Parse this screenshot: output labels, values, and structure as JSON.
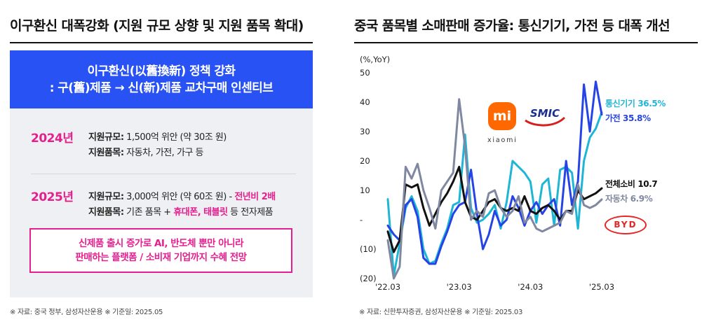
{
  "left": {
    "title": "이구환신 대폭강화 (지원 규모 상향 및 지원 품목 확대)",
    "banner": {
      "line1": "이구환신(以舊換新) 정책 강화",
      "line2": ": 구(舊)제품 → 신(新)제품 교차구매 인센티브"
    },
    "y2024": {
      "year": "2024년",
      "scale_label": "지원규모:",
      "scale_value": " 1,500억 위안 (약 30조 원)",
      "items_label": "지원품목:",
      "items_value": " 자동차, 가전, 가구 등"
    },
    "y2025": {
      "year": "2025년",
      "scale_label": "지원규모:",
      "scale_value": " 3,000억 위안 (약 60조 원) - ",
      "scale_highlight": "전년비 2배",
      "items_label": "지원품목:",
      "items_value1": " 기존 품목 + ",
      "items_highlight": "휴대폰, 태블릿",
      "items_value2": " 등 전자제품"
    },
    "callout": {
      "line1": "신제품 출시 증가로 AI, 반도체 뿐만 아니라",
      "line2": "판매하는 플랫폼 / 소비재 기업까지 수혜 전망"
    },
    "source": "※ 자료: 중국 정부, 삼성자산운용 ※ 기준일: 2025.05"
  },
  "right": {
    "title": "중국 품목별 소매판매 증가율: 통신기기, 가전 등 대폭 개선",
    "source": "※ 자료: 신한투자증권, 삼성자산운용 ※ 기준일: 2025.03",
    "logos": {
      "xiaomi_mark": "mi",
      "xiaomi_text": "xiaomi",
      "smic_text": "SMIC",
      "byd_text": "BYD"
    }
  },
  "chart_data": {
    "type": "line",
    "unit_label": "(%,YoY)",
    "ylim": [
      -20,
      50
    ],
    "yticks": [
      -20,
      -10,
      0,
      10,
      20,
      30,
      40,
      50
    ],
    "ytick_labels": [
      "(20)",
      "(10)",
      "-",
      "10",
      "20",
      "30",
      "40",
      "50"
    ],
    "xticks": [
      {
        "index": 0,
        "label": "'22.03"
      },
      {
        "index": 12,
        "label": "'23.03"
      },
      {
        "index": 24,
        "label": "'24.03"
      },
      {
        "index": 36,
        "label": "'25.03"
      }
    ],
    "x_count": 37,
    "grid": false,
    "series": [
      {
        "name": "통신기기",
        "end_label": "통신기기 36.5%",
        "color": "#1fb6d6",
        "width": 3,
        "values": [
          7,
          -19,
          -8,
          4,
          8,
          3,
          -10,
          -15,
          -14,
          -8,
          -3,
          5,
          6,
          29,
          4,
          -1,
          0,
          2,
          5,
          -3,
          6,
          20,
          18,
          16,
          13,
          -1,
          12,
          14,
          -2,
          17,
          18,
          16,
          -3,
          20,
          28,
          31,
          36.5
        ]
      },
      {
        "name": "가전",
        "end_label": "가전 35.8%",
        "color": "#2643e6",
        "width": 3,
        "values": [
          -2,
          -5,
          -7,
          5,
          7,
          1,
          -13,
          -15,
          -15,
          -9,
          -4,
          2,
          5,
          6,
          17,
          2,
          -10,
          -5,
          3,
          -2,
          0,
          8,
          4,
          -2,
          3,
          6,
          2,
          5,
          7,
          -2,
          20,
          5,
          13,
          46,
          30,
          47,
          35.8
        ]
      },
      {
        "name": "전체소비",
        "end_label": "전체소비 10.7",
        "color": "#111111",
        "width": 3,
        "values": [
          -4,
          -11,
          -7,
          12,
          11,
          12,
          4,
          -2,
          2,
          6,
          9,
          13,
          18,
          6,
          1,
          0,
          3,
          6,
          7,
          4,
          3,
          4,
          3,
          8,
          3,
          2,
          4,
          5,
          3,
          0,
          3,
          3,
          10,
          7,
          8,
          9,
          10.7
        ]
      },
      {
        "name": "자동차",
        "end_label": "자동차 6.9%",
        "color": "#7f88a0",
        "width": 3,
        "values": [
          -7,
          -31,
          -16,
          18,
          14,
          19,
          10,
          4,
          -3,
          10,
          13,
          16,
          41,
          25,
          0,
          3,
          1,
          9,
          10,
          4,
          1,
          3,
          8,
          -1,
          1,
          -3,
          -4,
          -3,
          -2,
          -1,
          3,
          2,
          12,
          5,
          4,
          5,
          6.9
        ]
      }
    ]
  }
}
